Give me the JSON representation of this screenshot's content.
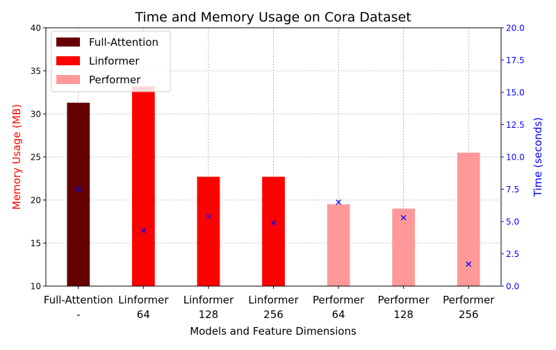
{
  "chart_data": {
    "type": "bar",
    "title": "Time and Memory Usage on Cora Dataset",
    "xlabel": "Models and Feature Dimensions",
    "ylabel_left": "Memory Usage (MB)",
    "ylabel_right": "Time (seconds)",
    "ylim_left": [
      10,
      40
    ],
    "ylim_right": [
      0,
      20
    ],
    "yticks_left": [
      10,
      15,
      20,
      25,
      30,
      35,
      40
    ],
    "yticks_right": [
      "0.0",
      "2.5",
      "5.0",
      "7.5",
      "10.0",
      "12.5",
      "15.0",
      "17.5",
      "20.0"
    ],
    "grid": true,
    "legend_position": "top-left",
    "categories": [
      {
        "model": "Full-Attention",
        "dim": "-"
      },
      {
        "model": "Linformer",
        "dim": "64"
      },
      {
        "model": "Linformer",
        "dim": "128"
      },
      {
        "model": "Linformer",
        "dim": "256"
      },
      {
        "model": "Performer",
        "dim": "64"
      },
      {
        "model": "Performer",
        "dim": "128"
      },
      {
        "model": "Performer",
        "dim": "256"
      }
    ],
    "memory_mb": [
      31.3,
      33.2,
      22.7,
      22.7,
      19.5,
      19.0,
      25.5
    ],
    "time_s": [
      7.5,
      4.3,
      5.4,
      4.9,
      6.5,
      5.3,
      1.7
    ],
    "bar_colors": [
      "#660000",
      "#ff0000",
      "#ff0000",
      "#ff0000",
      "#ff9999",
      "#ff9999",
      "#ff9999"
    ],
    "legend": [
      {
        "label": "Full-Attention",
        "color": "#660000"
      },
      {
        "label": "Linformer",
        "color": "#ff0000"
      },
      {
        "label": "Performer",
        "color": "#ff9999"
      }
    ],
    "marker_color": "#0000ff",
    "left_axis_color": "#ff0000",
    "right_axis_color": "#0000ff"
  }
}
